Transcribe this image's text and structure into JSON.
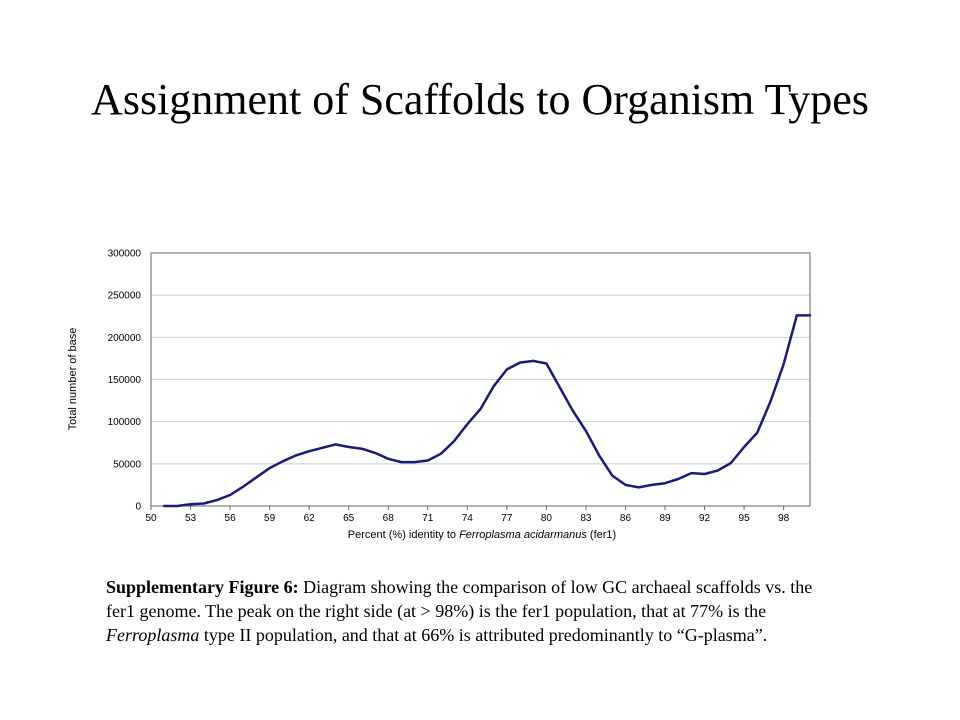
{
  "slide": {
    "title": "Assignment of Scaffolds to Organism Types"
  },
  "chart_data": {
    "type": "line",
    "title": "",
    "xlabel_prefix": "Percent (%) identity to ",
    "xlabel_italic": "Ferroplasma acidarmanus",
    "xlabel_suffix": " (fer1)",
    "ylabel": "Total number of base",
    "xlim": [
      50,
      100
    ],
    "ylim": [
      0,
      300000
    ],
    "x_ticks": [
      "50",
      "53",
      "56",
      "59",
      "62",
      "65",
      "68",
      "71",
      "74",
      "77",
      "80",
      "83",
      "86",
      "89",
      "92",
      "95",
      "98"
    ],
    "y_ticks": [
      "0",
      "50000",
      "100000",
      "150000",
      "200000",
      "250000",
      "300000"
    ],
    "grid": true,
    "line_color": "#1a1a80",
    "series": [
      {
        "x": [
          51,
          52,
          53,
          54,
          55,
          56,
          57,
          58,
          59,
          60,
          61,
          62,
          63,
          64,
          65,
          66,
          67,
          68,
          69,
          70,
          71,
          72,
          73,
          74,
          75,
          76,
          77,
          78,
          79,
          80,
          81,
          82,
          83,
          84,
          85,
          86,
          87,
          88,
          89,
          90,
          91,
          92,
          93,
          94,
          95,
          96,
          97,
          98,
          99,
          100
        ],
        "values": [
          0,
          0,
          2000,
          3000,
          7000,
          13000,
          23000,
          34000,
          45000,
          53000,
          60000,
          65000,
          69000,
          73000,
          70000,
          68000,
          63000,
          56000,
          52000,
          52000,
          54000,
          62000,
          77000,
          97000,
          115000,
          142000,
          162000,
          170000,
          172000,
          169000,
          141000,
          113000,
          89000,
          60000,
          36000,
          25000,
          22000,
          25000,
          27000,
          32000,
          39000,
          38000,
          42000,
          51000,
          70000,
          87000,
          124000,
          168000,
          226000,
          226000
        ]
      }
    ]
  },
  "caption": {
    "label": "Supplementary Figure 6:",
    "text1": " Diagram showing the comparison of low GC archaeal scaffolds vs. the fer1 genome.  The peak on the right side (at > 98%) is the fer1 population, that at 77% is the ",
    "italic": "Ferroplasma",
    "text2": " type II population, and that at 66% is attributed predominantly to “G-plasma”."
  }
}
